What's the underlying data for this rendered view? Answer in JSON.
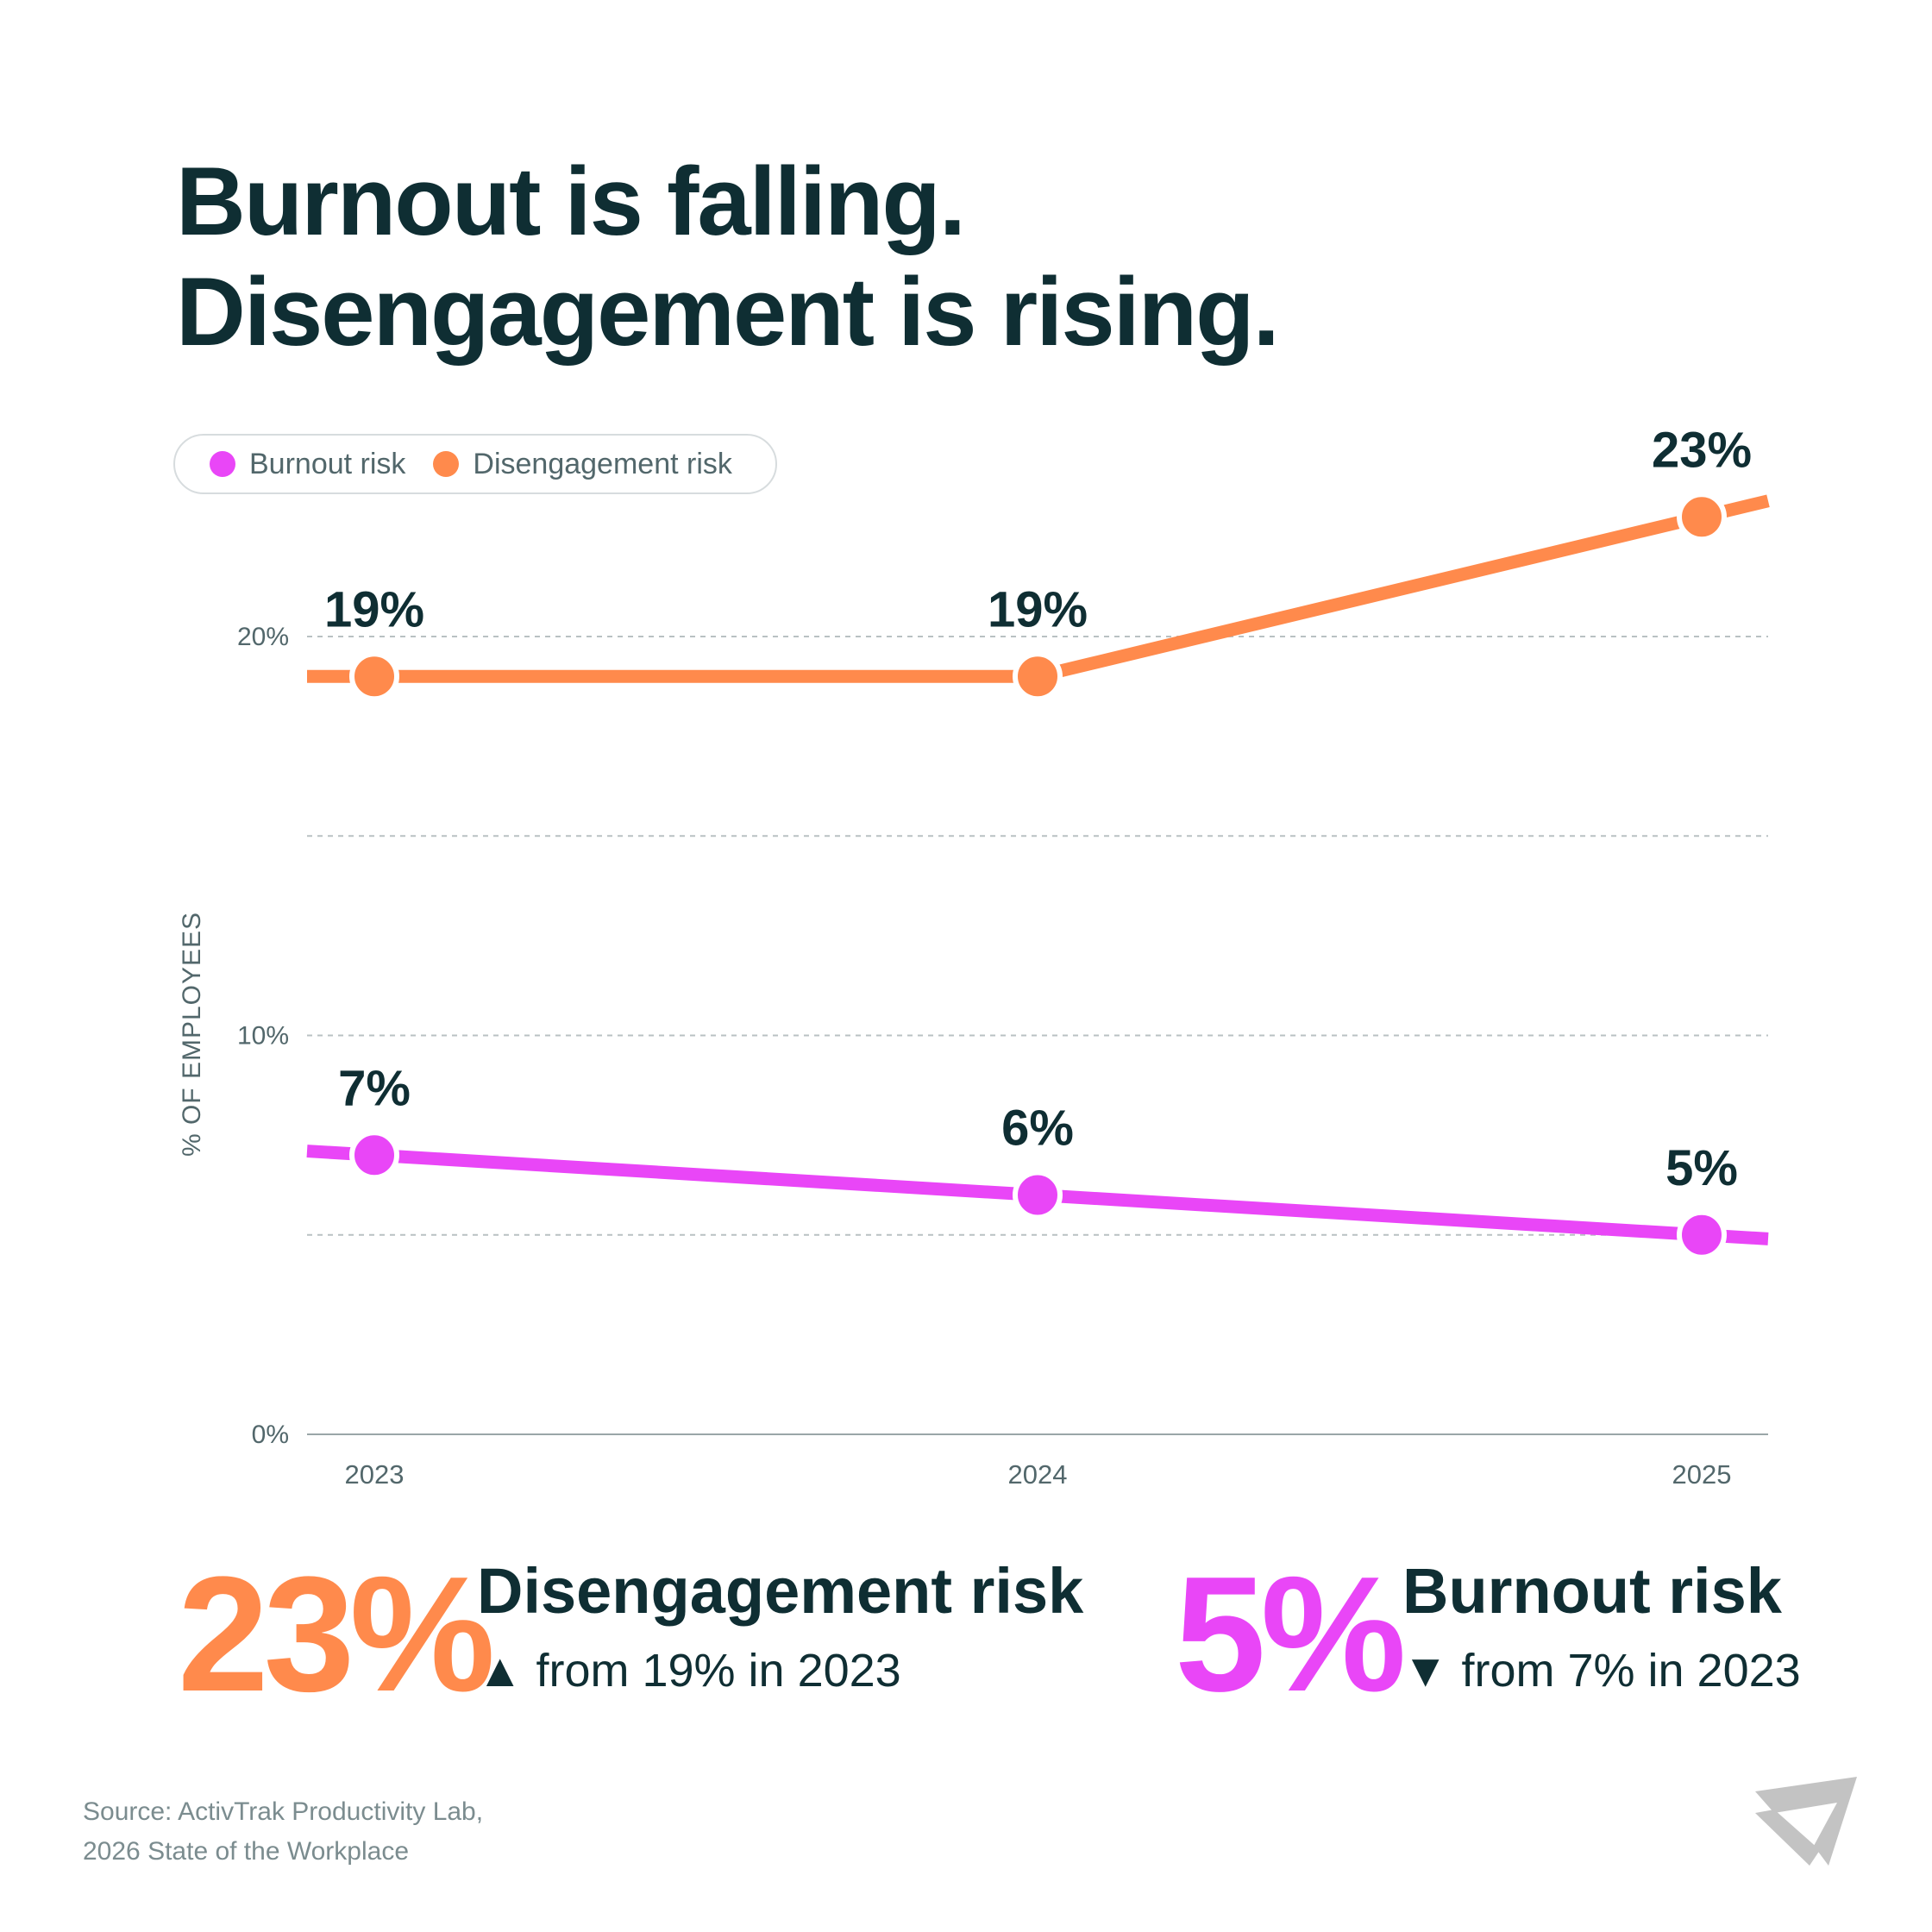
{
  "title": {
    "line1": "Burnout is falling.",
    "line2": "Disengagement is rising."
  },
  "legend": [
    {
      "label": "Burnout risk",
      "color": "#e946f7"
    },
    {
      "label": "Disengagement risk",
      "color": "#ff8a4c"
    }
  ],
  "chart_data": {
    "type": "line",
    "x": [
      "2023",
      "2024",
      "2025"
    ],
    "series": [
      {
        "name": "Disengagement risk",
        "color": "#ff8a4c",
        "values": [
          19,
          19,
          23
        ],
        "labels": [
          "19%",
          "19%",
          "23%"
        ]
      },
      {
        "name": "Burnout risk",
        "color": "#e946f7",
        "values": [
          7,
          6,
          5
        ],
        "labels": [
          "7%",
          "6%",
          "5%"
        ]
      }
    ],
    "ylabel": "% OF EMPLOYEES",
    "ylim": [
      0,
      20
    ],
    "yticks": [
      {
        "v": 0,
        "label": "0%"
      },
      {
        "v": 10,
        "label": "10%"
      },
      {
        "v": 20,
        "label": "20%"
      }
    ],
    "gridlines": [
      5,
      10,
      15,
      20
    ],
    "legend_position": "top-left"
  },
  "stats": [
    {
      "value": "23%",
      "label": "Disengagement risk",
      "arrow": "▲",
      "sub": "from 19% in 2023",
      "color": "#ff8a4c"
    },
    {
      "value": "5%",
      "label": "Burnout risk",
      "arrow": "▼",
      "sub": "from 7% in 2023",
      "color": "#e946f7"
    }
  ],
  "source": {
    "line1": "Source: ActivTrak Productivity Lab,",
    "line2": "2026 State of the Workplace"
  }
}
